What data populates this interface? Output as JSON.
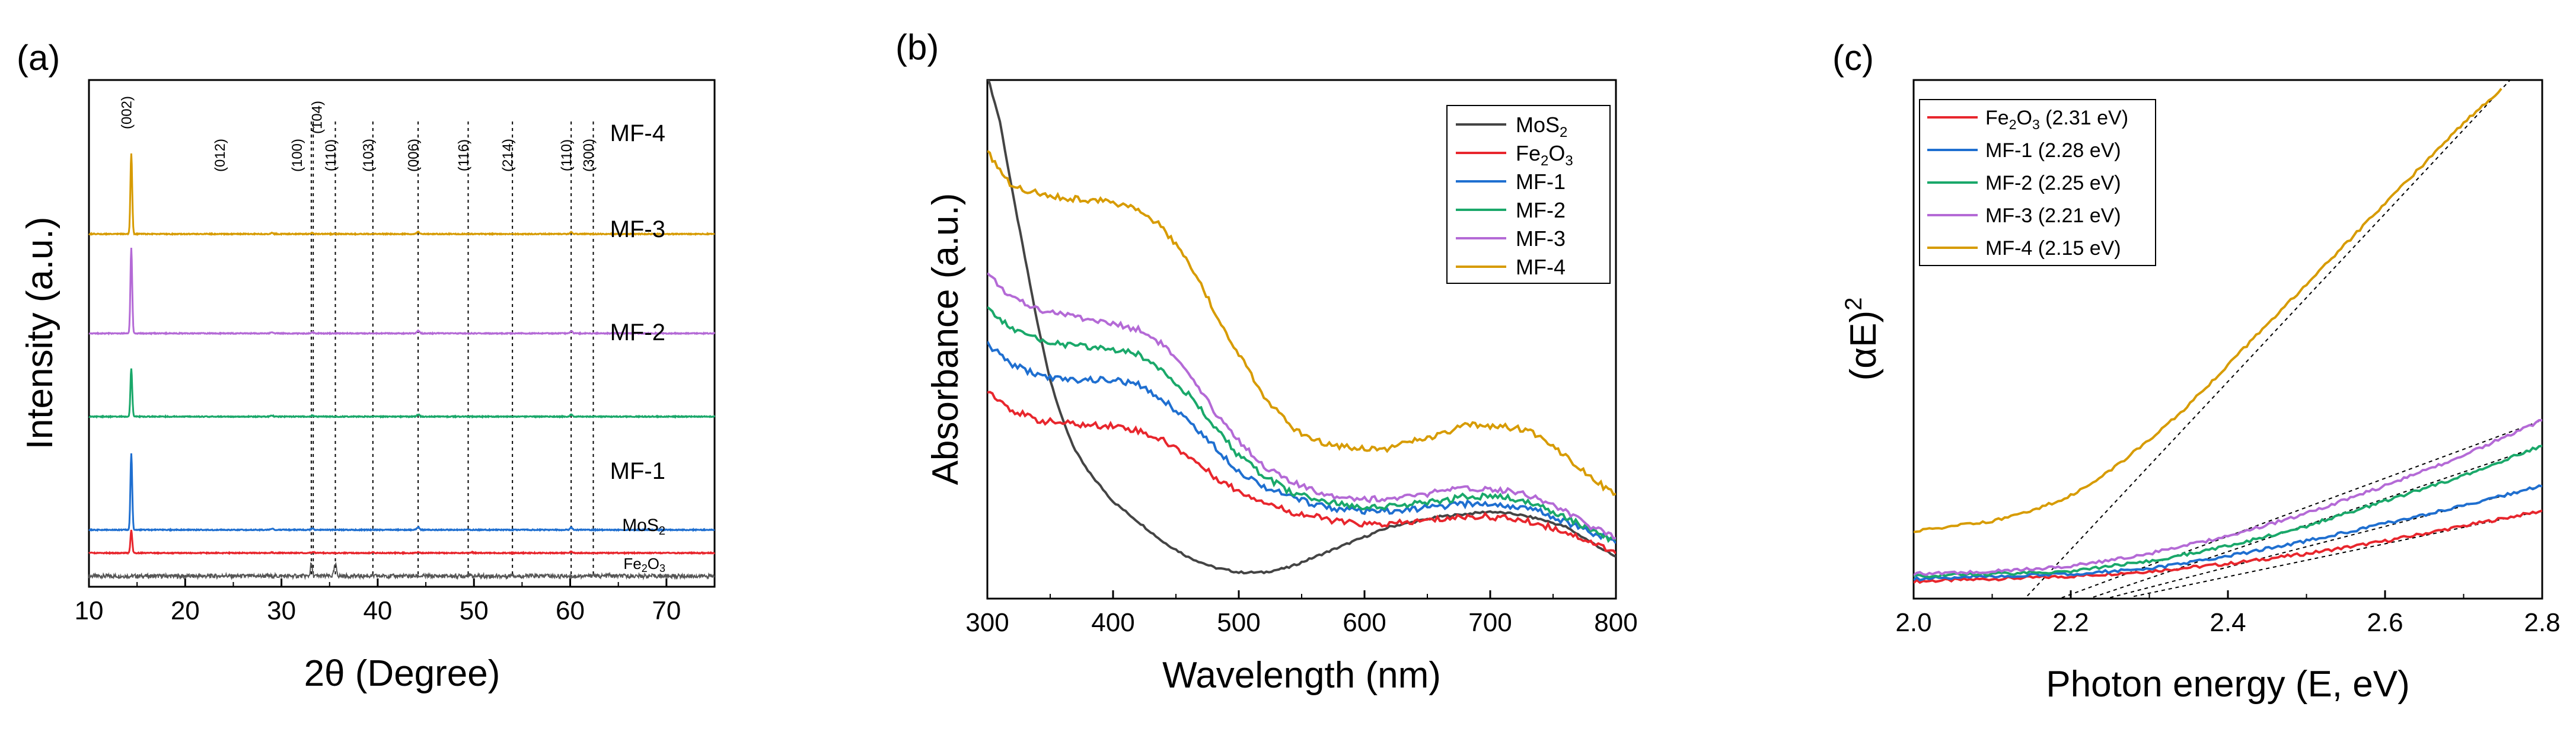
{
  "panel_labels": [
    "(a)",
    "(b)",
    "(c)"
  ],
  "chart_data": [
    {
      "id": "a",
      "type": "line",
      "title": "",
      "xlabel": "2θ (Degree)",
      "ylabel": "Intensity (a.u.)",
      "xlim": [
        10,
        75
      ],
      "xticks": [
        10,
        20,
        30,
        40,
        50,
        60,
        70
      ],
      "series": [
        {
          "name": "Fe2O3",
          "label_main": "Fe",
          "label_sub1": "2",
          "label_mid": "O",
          "label_sub2": "3",
          "color": "#555555",
          "baseline": 0.0,
          "peaks": [
            [
              24.1,
              0.04
            ],
            [
              33.1,
              0.55
            ],
            [
              35.6,
              0.5
            ],
            [
              40.8,
              0.03
            ],
            [
              49.4,
              0.06
            ],
            [
              54.0,
              0.08
            ],
            [
              57.6,
              0.04
            ],
            [
              62.4,
              0.05
            ],
            [
              64.0,
              0.05
            ]
          ]
        },
        {
          "name": "MoS2",
          "label_main": "MoS",
          "label_sub1": "2",
          "label_mid": "",
          "label_sub2": "",
          "color": "#e8262d",
          "baseline": 1.0,
          "peaks": [
            [
              14.4,
              1.0
            ],
            [
              29.0,
              0.03
            ],
            [
              33.3,
              0.04
            ],
            [
              39.5,
              0.03
            ],
            [
              44.2,
              0.04
            ],
            [
              49.8,
              0.03
            ],
            [
              60.1,
              0.05
            ]
          ]
        },
        {
          "name": "MF-1",
          "label_main": "MF-1",
          "color": "#1f6fd0",
          "baseline": 2.0,
          "peaks": [
            [
              14.4,
              3.3
            ],
            [
              29.0,
              0.06
            ],
            [
              44.2,
              0.12
            ],
            [
              60.1,
              0.1
            ],
            [
              33.2,
              0.05
            ]
          ]
        },
        {
          "name": "MF-2",
          "label_main": "MF-2",
          "color": "#1aa86a",
          "baseline": 6.9,
          "peaks": [
            [
              14.4,
              2.1
            ],
            [
              29.0,
              0.05
            ],
            [
              44.2,
              0.1
            ],
            [
              60.1,
              0.08
            ],
            [
              33.2,
              0.04
            ]
          ]
        },
        {
          "name": "MF-3",
          "label_main": "MF-3",
          "color": "#b46ad6",
          "baseline": 10.5,
          "peaks": [
            [
              14.4,
              3.7
            ],
            [
              29.0,
              0.06
            ],
            [
              44.2,
              0.12
            ],
            [
              60.1,
              0.1
            ],
            [
              33.2,
              0.05
            ]
          ]
        },
        {
          "name": "MF-4",
          "label_main": "MF-4",
          "color": "#d79b00",
          "baseline": 14.8,
          "peaks": [
            [
              14.4,
              3.5
            ],
            [
              29.0,
              0.05
            ],
            [
              44.2,
              0.1
            ],
            [
              60.1,
              0.08
            ],
            [
              33.2,
              0.04
            ]
          ]
        }
      ],
      "reference_lines": [
        33.1,
        33.3,
        35.6,
        39.5,
        44.2,
        49.4,
        54.0,
        60.1,
        62.4
      ],
      "hkl_labels": [
        {
          "text": "(002)",
          "x": 14.4
        },
        {
          "text": "(012)",
          "x": 24.1
        },
        {
          "text": "(100)",
          "x": 32.6
        },
        {
          "text": "(104)",
          "x": 33.8
        },
        {
          "text": "(110)",
          "x": 35.6
        },
        {
          "text": "(103)",
          "x": 39.5
        },
        {
          "text": "(006)",
          "x": 44.2
        },
        {
          "text": "(116)",
          "x": 49.4
        },
        {
          "text": "(214)",
          "x": 54.0
        },
        {
          "text": "(110)",
          "x": 60.1
        },
        {
          "text": "(300)",
          "x": 62.4
        }
      ]
    },
    {
      "id": "b",
      "type": "line",
      "title": "",
      "xlabel": "Wavelength (nm)",
      "ylabel": "Absorbance (a.u.)",
      "xlim": [
        300,
        800
      ],
      "xticks": [
        300,
        400,
        500,
        600,
        700,
        800
      ],
      "ylim": [
        0,
        1
      ],
      "legend_position": "top-right",
      "series": [
        {
          "name": "MoS2",
          "legend_main": "MoS",
          "legend_sub": "2",
          "legend_tail": "",
          "legend_main2": "",
          "color": "#444444",
          "x": [
            300,
            310,
            320,
            330,
            340,
            350,
            360,
            370,
            380,
            390,
            400,
            420,
            440,
            460,
            480,
            500,
            520,
            540,
            560,
            580,
            600,
            620,
            640,
            660,
            680,
            700,
            720,
            740,
            760,
            780,
            800
          ],
          "y": [
            1.02,
            0.93,
            0.79,
            0.66,
            0.53,
            0.42,
            0.34,
            0.28,
            0.24,
            0.21,
            0.18,
            0.14,
            0.1,
            0.07,
            0.05,
            0.04,
            0.04,
            0.05,
            0.07,
            0.09,
            0.11,
            0.13,
            0.14,
            0.15,
            0.155,
            0.16,
            0.155,
            0.145,
            0.13,
            0.1,
            0.07
          ]
        },
        {
          "name": "Fe2O3",
          "legend_main": "Fe",
          "legend_sub": "2",
          "legend_tail": "O",
          "legend_sub2": "3",
          "color": "#e8262d",
          "x": [
            300,
            320,
            340,
            360,
            380,
            400,
            420,
            440,
            460,
            480,
            500,
            520,
            540,
            560,
            580,
            600,
            620,
            640,
            660,
            680,
            700,
            720,
            740,
            760,
            780,
            800
          ],
          "y": [
            0.4,
            0.36,
            0.34,
            0.335,
            0.33,
            0.33,
            0.32,
            0.3,
            0.27,
            0.23,
            0.2,
            0.18,
            0.16,
            0.15,
            0.14,
            0.135,
            0.135,
            0.14,
            0.145,
            0.15,
            0.15,
            0.145,
            0.135,
            0.12,
            0.1,
            0.08
          ]
        },
        {
          "name": "MF-1",
          "legend_main": "MF-1",
          "color": "#1f6fd0",
          "x": [
            300,
            320,
            340,
            360,
            380,
            400,
            420,
            440,
            460,
            480,
            500,
            520,
            540,
            560,
            580,
            600,
            620,
            640,
            660,
            680,
            700,
            720,
            740,
            760,
            780,
            800
          ],
          "y": [
            0.49,
            0.45,
            0.43,
            0.42,
            0.42,
            0.42,
            0.41,
            0.38,
            0.34,
            0.29,
            0.24,
            0.21,
            0.19,
            0.175,
            0.165,
            0.16,
            0.16,
            0.165,
            0.17,
            0.175,
            0.175,
            0.17,
            0.16,
            0.14,
            0.12,
            0.1
          ]
        },
        {
          "name": "MF-2",
          "legend_main": "MF-2",
          "color": "#1aa86a",
          "x": [
            300,
            320,
            340,
            360,
            380,
            400,
            420,
            440,
            460,
            480,
            500,
            520,
            540,
            560,
            580,
            600,
            620,
            640,
            660,
            680,
            700,
            720,
            740,
            760,
            780,
            800
          ],
          "y": [
            0.56,
            0.52,
            0.5,
            0.49,
            0.485,
            0.48,
            0.47,
            0.44,
            0.39,
            0.33,
            0.27,
            0.23,
            0.2,
            0.185,
            0.175,
            0.17,
            0.17,
            0.175,
            0.18,
            0.19,
            0.19,
            0.185,
            0.17,
            0.15,
            0.125,
            0.1
          ]
        },
        {
          "name": "MF-3",
          "legend_main": "MF-3",
          "color": "#b46ad6",
          "x": [
            300,
            320,
            340,
            360,
            380,
            400,
            420,
            440,
            460,
            480,
            500,
            520,
            540,
            560,
            580,
            600,
            620,
            640,
            660,
            680,
            700,
            720,
            740,
            760,
            780,
            800
          ],
          "y": [
            0.63,
            0.58,
            0.56,
            0.55,
            0.54,
            0.53,
            0.52,
            0.49,
            0.43,
            0.36,
            0.3,
            0.25,
            0.22,
            0.2,
            0.19,
            0.185,
            0.185,
            0.19,
            0.2,
            0.205,
            0.205,
            0.2,
            0.185,
            0.16,
            0.13,
            0.11
          ]
        },
        {
          "name": "MF-4",
          "legend_main": "MF-4",
          "color": "#d79b00",
          "x": [
            300,
            320,
            340,
            360,
            380,
            400,
            420,
            440,
            460,
            480,
            500,
            520,
            540,
            560,
            580,
            600,
            620,
            640,
            660,
            680,
            700,
            720,
            740,
            760,
            780,
            800
          ],
          "y": [
            0.87,
            0.8,
            0.79,
            0.78,
            0.775,
            0.77,
            0.76,
            0.72,
            0.65,
            0.56,
            0.47,
            0.39,
            0.33,
            0.3,
            0.29,
            0.285,
            0.285,
            0.3,
            0.31,
            0.33,
            0.33,
            0.325,
            0.31,
            0.27,
            0.23,
            0.19
          ]
        }
      ]
    },
    {
      "id": "c",
      "type": "line",
      "title": "",
      "xlabel": "Photon energy (E, eV)",
      "ylabel": "(αE)",
      "ylabel_sup": "2",
      "xlim": [
        2.0,
        2.8
      ],
      "xticks": [
        2.0,
        2.2,
        2.4,
        2.6,
        2.8
      ],
      "ylim": [
        0,
        1
      ],
      "legend_position": "top-left",
      "series": [
        {
          "name": "Fe2O3 (2.31 eV)",
          "legend_main": "Fe",
          "legend_sub": "2",
          "legend_tail": "O",
          "legend_sub2": "3",
          "legend_value": " (2.31 eV)",
          "color": "#e8262d",
          "x": [
            2.0,
            2.1,
            2.2,
            2.3,
            2.4,
            2.5,
            2.6,
            2.7,
            2.8
          ],
          "y": [
            0.02,
            0.025,
            0.03,
            0.04,
            0.055,
            0.075,
            0.1,
            0.13,
            0.16
          ],
          "bandgap": 2.31
        },
        {
          "name": "MF-1 (2.28 eV)",
          "legend_main": "MF-1 (2.28 eV)",
          "color": "#1f6fd0",
          "x": [
            2.0,
            2.1,
            2.2,
            2.3,
            2.4,
            2.5,
            2.6,
            2.7,
            2.8
          ],
          "y": [
            0.025,
            0.03,
            0.035,
            0.045,
            0.07,
            0.1,
            0.135,
            0.17,
            0.21
          ],
          "bandgap": 2.28
        },
        {
          "name": "MF-2 (2.25 eV)",
          "legend_main": "MF-2 (2.25 eV)",
          "color": "#1aa86a",
          "x": [
            2.0,
            2.1,
            2.2,
            2.3,
            2.4,
            2.5,
            2.6,
            2.7,
            2.8
          ],
          "y": [
            0.03,
            0.035,
            0.04,
            0.06,
            0.09,
            0.13,
            0.18,
            0.23,
            0.29
          ],
          "bandgap": 2.25
        },
        {
          "name": "MF-3 (2.21 eV)",
          "legend_main": "MF-3 (2.21 eV)",
          "color": "#b46ad6",
          "x": [
            2.0,
            2.1,
            2.2,
            2.3,
            2.4,
            2.5,
            2.6,
            2.7,
            2.8
          ],
          "y": [
            0.035,
            0.04,
            0.05,
            0.075,
            0.11,
            0.155,
            0.21,
            0.27,
            0.34
          ],
          "bandgap": 2.21
        },
        {
          "name": "MF-4 (2.15 eV)",
          "legend_main": "MF-4 (2.15 eV)",
          "color": "#d79b00",
          "x": [
            2.0,
            2.05,
            2.1,
            2.15,
            2.2,
            2.25,
            2.3,
            2.35,
            2.4,
            2.45,
            2.5,
            2.55,
            2.6,
            2.65,
            2.7,
            2.75
          ],
          "y": [
            0.12,
            0.13,
            0.14,
            0.16,
            0.19,
            0.24,
            0.3,
            0.37,
            0.45,
            0.53,
            0.61,
            0.69,
            0.77,
            0.85,
            0.93,
            1.0
          ],
          "bandgap": 2.15
        }
      ]
    }
  ]
}
